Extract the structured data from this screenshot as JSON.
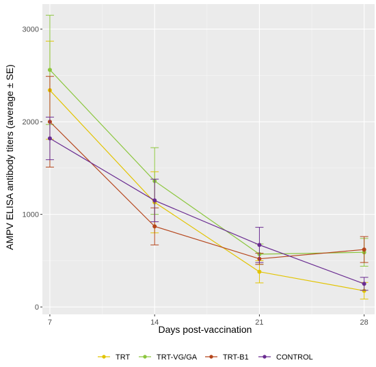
{
  "chart_data": {
    "type": "line",
    "title": "",
    "xlabel": "Days post-vaccination",
    "ylabel": "AMPV ELISA antibody titers (average ± SE)",
    "x": [
      7,
      14,
      21,
      28
    ],
    "x_ticks": [
      "7",
      "14",
      "21",
      "28"
    ],
    "y_ticks": [
      "0",
      "1000",
      "2000",
      "3000"
    ],
    "xlim": [
      6.5,
      28.7
    ],
    "ylim": [
      -80,
      3270
    ],
    "grid": true,
    "legend_position": "bottom",
    "series": [
      {
        "name": "TRT",
        "color": "#E2C400",
        "values": [
          2340,
          1130,
          380,
          175
        ],
        "se": [
          530,
          330,
          120,
          90
        ]
      },
      {
        "name": "TRT-VG/GA",
        "color": "#8CC63E",
        "values": [
          2560,
          1360,
          570,
          590
        ],
        "se": [
          590,
          360,
          110,
          150
        ]
      },
      {
        "name": "TRT-B1",
        "color": "#B5451B",
        "values": [
          2000,
          870,
          520,
          620
        ],
        "se": [
          490,
          200,
          60,
          140
        ]
      },
      {
        "name": "CONTROL",
        "color": "#6A2C91",
        "values": [
          1820,
          1150,
          670,
          250
        ],
        "se": [
          230,
          230,
          190,
          70
        ]
      }
    ]
  }
}
